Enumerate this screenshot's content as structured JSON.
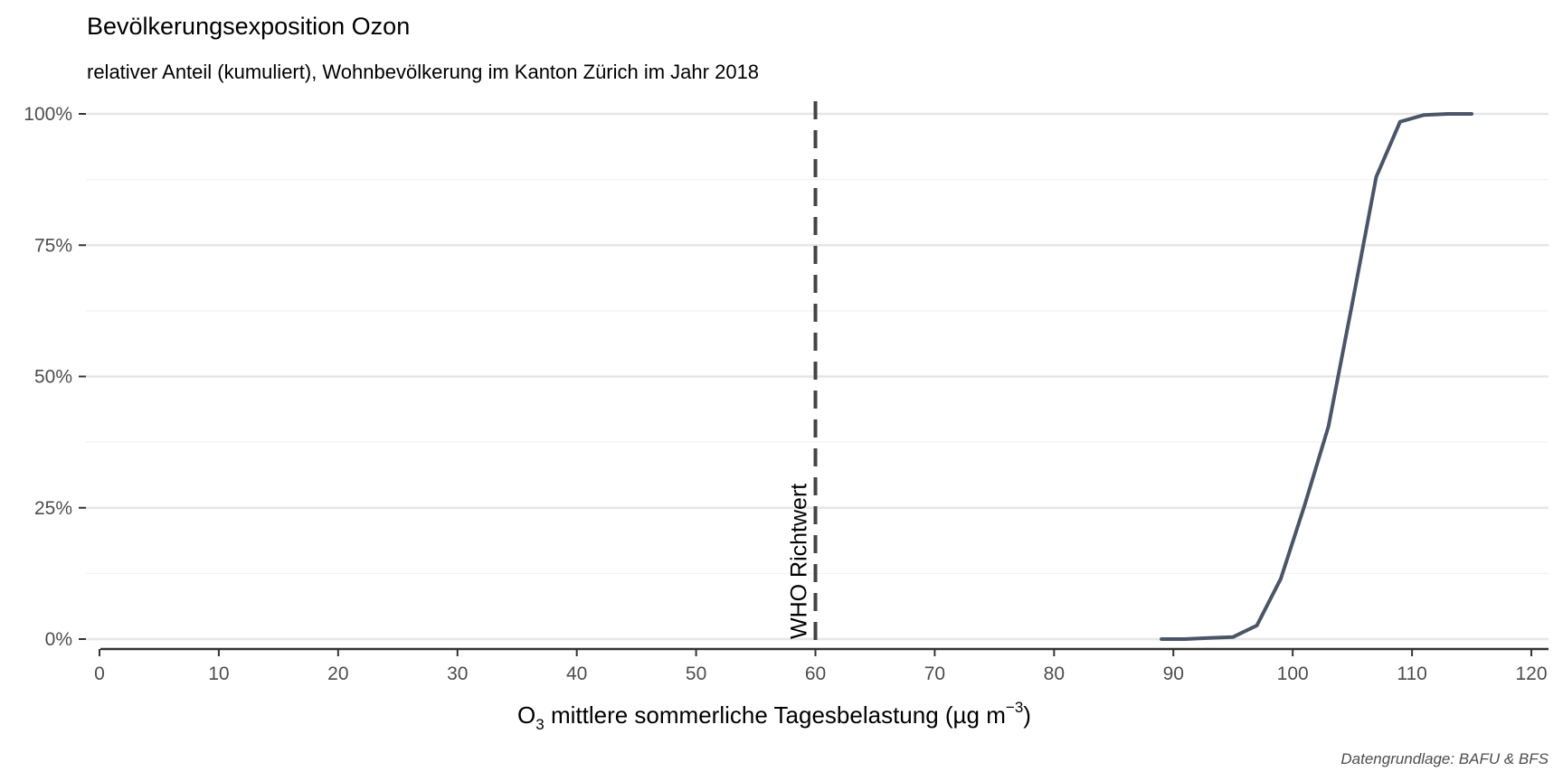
{
  "chart_data": {
    "type": "line",
    "title": "Bevölkerungsexposition Ozon",
    "subtitle": "relativer Anteil (kumuliert), Wohnbevölkerung im Kanton Zürich im Jahr 2018",
    "xlabel": {
      "prefix": "O",
      "subscript": "3",
      "main": " mittlere sommerliche Tagesbelastung (µg m",
      "superscript": "−3",
      "suffix": ")"
    },
    "ylabel": "",
    "caption": "Datengrundlage: BAFU & BFS",
    "xlim": [
      0,
      120
    ],
    "ylim": [
      0,
      1
    ],
    "x_ticks": [
      0,
      10,
      20,
      30,
      40,
      50,
      60,
      70,
      80,
      90,
      100,
      110,
      120
    ],
    "y_ticks": [
      {
        "value": 0,
        "label": "0%"
      },
      {
        "value": 0.25,
        "label": "25%"
      },
      {
        "value": 0.5,
        "label": "50%"
      },
      {
        "value": 0.75,
        "label": "75%"
      },
      {
        "value": 1,
        "label": "100%"
      }
    ],
    "grid": "horizontal",
    "series": [
      {
        "color": "#4a5568",
        "x": [
          89,
          91,
          93,
          95,
          97,
          99,
          101,
          103,
          105,
          107,
          109,
          111,
          113,
          115
        ],
        "y": [
          0.0,
          0.0,
          0.002,
          0.004,
          0.026,
          0.115,
          0.255,
          0.405,
          0.64,
          0.88,
          0.985,
          0.998,
          1.0,
          1.0
        ]
      }
    ],
    "reference_line": {
      "x": 60,
      "label": "WHO Richtwert",
      "color": "#444444"
    }
  }
}
